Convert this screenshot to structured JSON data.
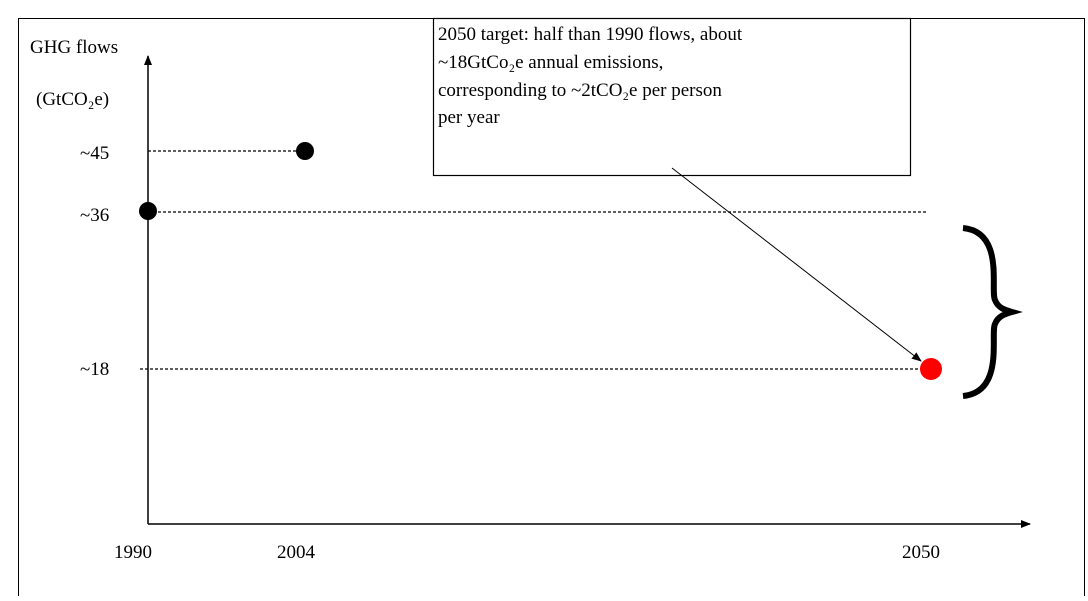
{
  "y_axis_label": [
    "GHG flows",
    "(GtCO₂e)"
  ],
  "levels": [
    "~45",
    "~36",
    "~18"
  ],
  "years": [
    "1990",
    "2004",
    "2050"
  ],
  "annotation": [
    "2050 target: half than 1990 flows, about",
    "~18GtCo₂e annual emissions,",
    "corresponding to ~2tCO₂e per person",
    "per year"
  ]
}
